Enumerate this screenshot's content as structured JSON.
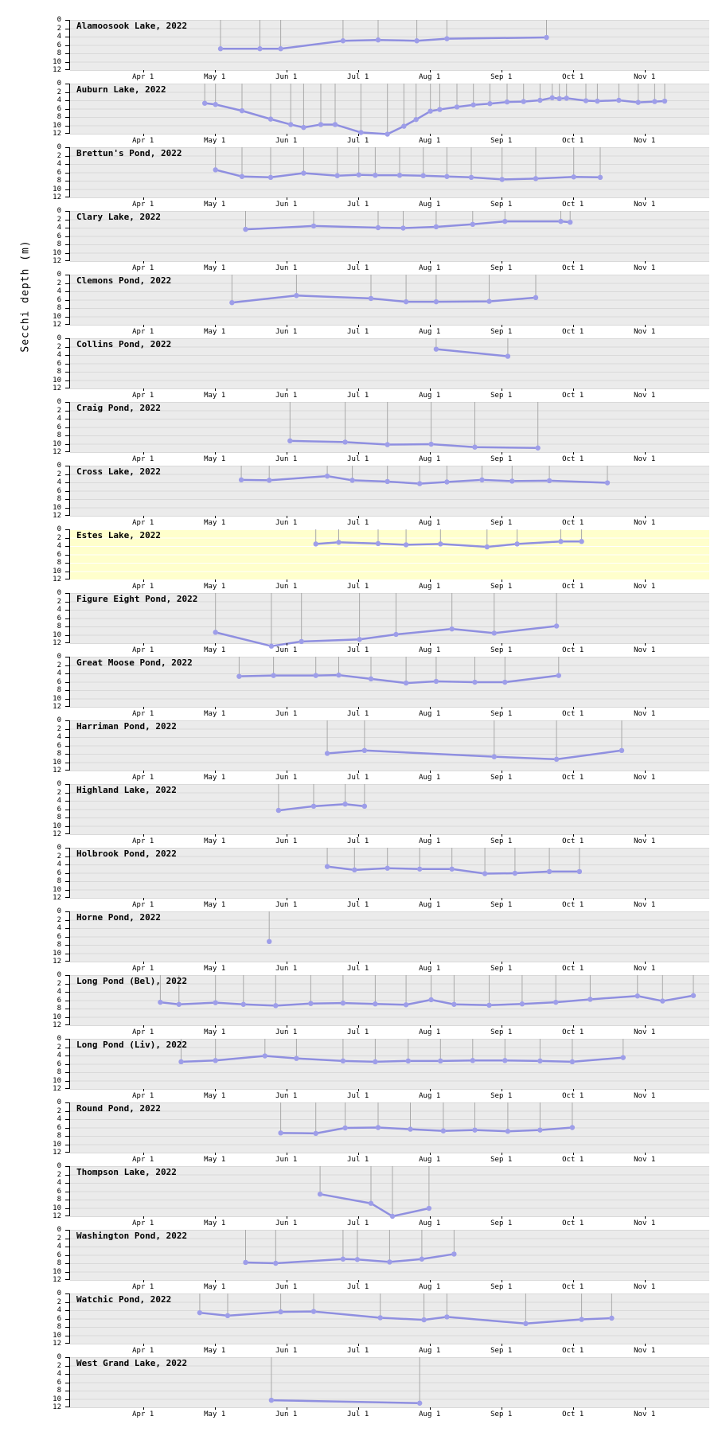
{
  "chart_config": {
    "ylabel": "Secchi depth (m)",
    "ylim": [
      0,
      12
    ],
    "y_ticks": [
      0,
      2,
      4,
      6,
      8,
      10,
      12
    ],
    "x_tick_labels": [
      "Apr 1",
      "May 1",
      "Jun 1",
      "Jul 1",
      "Aug 1",
      "Sep 1",
      "Oct 1",
      "Nov 1"
    ],
    "x_tick_months": [
      0,
      1,
      2,
      3,
      4,
      5,
      6,
      7
    ],
    "x_range_months": [
      -1.03,
      7.89
    ],
    "x_unit": "months after Apr 1",
    "grid": true,
    "panel_background": "#ebebeb",
    "highlight_background": "#ffffcc",
    "grid_color": "#d9d9d9",
    "highlight_grid_color": "#ffffff",
    "drop_line_color": "#a9a9a9",
    "line_color": "#8f8fe0",
    "marker_color": "#9e9ee9",
    "text_color": "#000000"
  },
  "chart_data": [
    {
      "type": "line",
      "title": "Alamoosook Lake, 2022",
      "highlight": false,
      "x": [
        1.07,
        1.62,
        1.91,
        2.78,
        3.27,
        3.81,
        4.23,
        5.62
      ],
      "y": [
        6.9,
        6.9,
        6.9,
        5.0,
        4.8,
        5.0,
        4.5,
        4.2
      ]
    },
    {
      "type": "line",
      "title": "Auburn Lake, 2022",
      "highlight": false,
      "x": [
        0.85,
        1.0,
        1.37,
        1.77,
        2.05,
        2.23,
        2.47,
        2.67,
        3.03,
        3.4,
        3.63,
        3.8,
        4.0,
        4.13,
        4.37,
        4.6,
        4.83,
        5.07,
        5.3,
        5.53,
        5.7,
        5.8,
        5.9,
        6.17,
        6.33,
        6.63,
        6.9,
        7.13,
        7.27
      ],
      "y": [
        4.7,
        5.0,
        6.5,
        8.5,
        9.8,
        10.5,
        9.8,
        9.8,
        11.7,
        12.1,
        10.2,
        8.6,
        6.6,
        6.2,
        5.6,
        5.1,
        4.8,
        4.4,
        4.3,
        4.0,
        3.4,
        3.6,
        3.5,
        4.1,
        4.2,
        4.0,
        4.5,
        4.3,
        4.2
      ]
    },
    {
      "type": "line",
      "title": "Brettun's Pond, 2022",
      "highlight": false,
      "x": [
        1.0,
        1.37,
        1.77,
        2.23,
        2.7,
        3.0,
        3.23,
        3.57,
        3.9,
        4.23,
        4.57,
        5.0,
        5.47,
        6.0,
        6.37
      ],
      "y": [
        5.4,
        7.0,
        7.2,
        6.2,
        6.8,
        6.6,
        6.7,
        6.7,
        6.8,
        7.0,
        7.2,
        7.7,
        7.5,
        7.1,
        7.2
      ]
    },
    {
      "type": "line",
      "title": "Clary Lake, 2022",
      "highlight": false,
      "x": [
        1.42,
        2.37,
        3.27,
        3.62,
        4.08,
        4.59,
        5.04,
        5.82,
        5.95
      ],
      "y": [
        4.4,
        3.6,
        4.0,
        4.1,
        3.8,
        3.2,
        2.5,
        2.5,
        2.7
      ]
    },
    {
      "type": "line",
      "title": "Clemons Pond, 2022",
      "highlight": false,
      "x": [
        1.23,
        2.13,
        3.17,
        3.66,
        4.08,
        4.82,
        5.47
      ],
      "y": [
        6.7,
        5.0,
        5.7,
        6.5,
        6.5,
        6.4,
        5.5
      ]
    },
    {
      "type": "line",
      "title": "Collins Pond, 2022",
      "highlight": false,
      "x": [
        4.08,
        5.08
      ],
      "y": [
        2.6,
        4.3
      ]
    },
    {
      "type": "line",
      "title": "Craig Pond, 2022",
      "highlight": false,
      "x": [
        2.04,
        2.81,
        3.4,
        4.01,
        4.62,
        5.5
      ],
      "y": [
        9.3,
        9.6,
        10.2,
        10.1,
        10.8,
        11.0
      ]
    },
    {
      "type": "line",
      "title": "Cross Lake, 2022",
      "highlight": false,
      "x": [
        1.36,
        1.75,
        2.56,
        2.91,
        3.4,
        3.85,
        4.23,
        4.72,
        5.14,
        5.66,
        6.47
      ],
      "y": [
        3.4,
        3.5,
        2.5,
        3.5,
        3.8,
        4.3,
        3.9,
        3.4,
        3.7,
        3.6,
        4.1
      ]
    },
    {
      "type": "line",
      "title": "Estes Lake, 2022",
      "highlight": true,
      "x": [
        2.4,
        2.72,
        3.27,
        3.66,
        4.14,
        4.79,
        5.21,
        5.82,
        6.11
      ],
      "y": [
        3.5,
        3.1,
        3.4,
        3.7,
        3.5,
        4.2,
        3.5,
        2.9,
        2.9
      ]
    },
    {
      "type": "line",
      "title": "Figure Eight Pond, 2022",
      "highlight": false,
      "x": [
        1.0,
        1.78,
        2.2,
        3.01,
        3.52,
        4.3,
        4.89,
        5.76
      ],
      "y": [
        9.4,
        12.7,
        11.6,
        11.1,
        9.9,
        8.6,
        9.6,
        7.9
      ]
    },
    {
      "type": "line",
      "title": "Great Moose Pond, 2022",
      "highlight": false,
      "x": [
        1.33,
        1.81,
        2.4,
        2.72,
        3.17,
        3.66,
        4.08,
        4.62,
        5.04,
        5.79
      ],
      "y": [
        4.7,
        4.5,
        4.5,
        4.4,
        5.3,
        6.3,
        5.9,
        6.1,
        6.1,
        4.5
      ]
    },
    {
      "type": "line",
      "title": "Harriman Pond, 2022",
      "highlight": false,
      "x": [
        2.56,
        3.08,
        4.89,
        5.76,
        6.67
      ],
      "y": [
        7.9,
        7.2,
        8.7,
        9.3,
        7.2
      ]
    },
    {
      "type": "line",
      "title": "Highland Lake, 2022",
      "highlight": false,
      "x": [
        1.88,
        2.37,
        2.81,
        3.08
      ],
      "y": [
        6.3,
        5.3,
        4.8,
        5.3
      ]
    },
    {
      "type": "line",
      "title": "Holbrook Pond, 2022",
      "highlight": false,
      "x": [
        2.56,
        2.94,
        3.4,
        3.85,
        4.3,
        4.76,
        5.18,
        5.66,
        6.08
      ],
      "y": [
        4.5,
        5.3,
        4.9,
        5.1,
        5.1,
        6.2,
        6.1,
        5.7,
        5.7
      ]
    },
    {
      "type": "line",
      "title": "Horne Pond, 2022",
      "highlight": false,
      "x": [
        1.75
      ],
      "y": [
        7.2
      ]
    },
    {
      "type": "line",
      "title": "Long Pond (Bel), 2022",
      "highlight": false,
      "x": [
        0.23,
        0.49,
        1.0,
        1.39,
        1.84,
        2.33,
        2.78,
        3.23,
        3.66,
        4.01,
        4.33,
        4.82,
        5.28,
        5.75,
        6.23,
        6.89,
        7.24,
        7.67
      ],
      "y": [
        6.5,
        7.0,
        6.6,
        7.0,
        7.3,
        6.8,
        6.7,
        6.9,
        7.1,
        5.9,
        7.0,
        7.2,
        6.9,
        6.5,
        5.8,
        5.0,
        6.2,
        4.9
      ]
    },
    {
      "type": "line",
      "title": "Long Pond (Liv), 2022",
      "highlight": false,
      "x": [
        0.52,
        1.0,
        1.69,
        2.13,
        2.78,
        3.23,
        3.69,
        4.14,
        4.59,
        5.04,
        5.53,
        5.98,
        6.69
      ],
      "y": [
        5.5,
        5.2,
        4.1,
        4.7,
        5.3,
        5.5,
        5.3,
        5.3,
        5.2,
        5.2,
        5.3,
        5.5,
        4.5
      ]
    },
    {
      "type": "line",
      "title": "Round Pond, 2022",
      "highlight": false,
      "x": [
        1.91,
        2.4,
        2.81,
        3.27,
        3.72,
        4.18,
        4.62,
        5.08,
        5.53,
        5.98
      ],
      "y": [
        7.3,
        7.4,
        6.1,
        6.0,
        6.4,
        6.8,
        6.6,
        6.9,
        6.6,
        6.0
      ]
    },
    {
      "type": "line",
      "title": "Thompson Lake, 2022",
      "highlight": false,
      "x": [
        2.46,
        3.17,
        3.47,
        3.98
      ],
      "y": [
        6.7,
        8.9,
        12.0,
        10.1
      ]
    },
    {
      "type": "line",
      "title": "Washington Pond, 2022",
      "highlight": false,
      "x": [
        1.42,
        1.84,
        2.78,
        2.98,
        3.43,
        3.88,
        4.33
      ],
      "y": [
        7.8,
        8.0,
        7.0,
        7.1,
        7.7,
        7.0,
        5.8
      ]
    },
    {
      "type": "line",
      "title": "Watchic Pond, 2022",
      "highlight": false,
      "x": [
        0.78,
        1.17,
        1.91,
        2.37,
        3.3,
        3.91,
        4.23,
        5.33,
        6.11,
        6.53
      ],
      "y": [
        4.6,
        5.3,
        4.4,
        4.3,
        5.8,
        6.3,
        5.6,
        7.2,
        6.2,
        5.9
      ]
    },
    {
      "type": "line",
      "title": "West Grand Lake, 2022",
      "highlight": false,
      "x": [
        1.78,
        3.85
      ],
      "y": [
        10.3,
        11.0
      ]
    }
  ]
}
